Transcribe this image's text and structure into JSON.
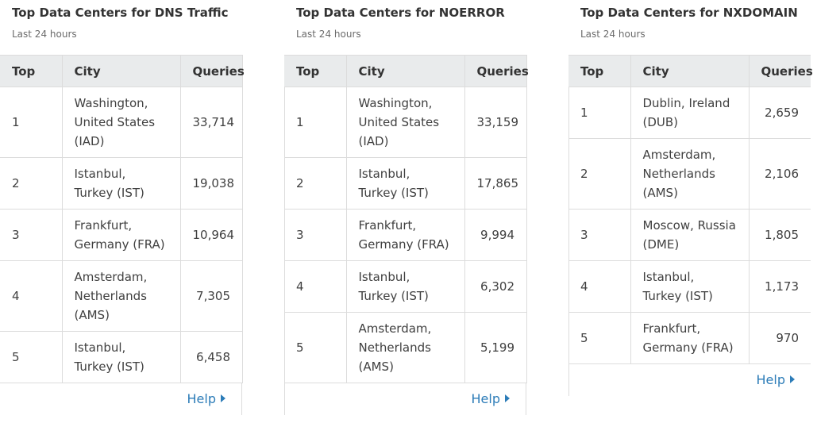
{
  "table_headers": {
    "top": "Top",
    "city": "City",
    "queries": "Queries"
  },
  "help_label": "Help",
  "panels": [
    {
      "title": "Top Data Centers for DNS Traffic",
      "subtitle": "Last 24 hours",
      "rows": [
        {
          "rank": "1",
          "city": "Washington, United States (IAD)",
          "queries": "33,714"
        },
        {
          "rank": "2",
          "city": "Istanbul, Turkey (IST)",
          "queries": "19,038"
        },
        {
          "rank": "3",
          "city": "Frankfurt, Germany (FRA)",
          "queries": "10,964"
        },
        {
          "rank": "4",
          "city": "Amsterdam, Netherlands (AMS)",
          "queries": "7,305"
        },
        {
          "rank": "5",
          "city": "Istanbul, Turkey (IST)",
          "queries": "6,458"
        }
      ]
    },
    {
      "title": "Top Data Centers for NOERROR",
      "subtitle": "Last 24 hours",
      "rows": [
        {
          "rank": "1",
          "city": "Washington, United States (IAD)",
          "queries": "33,159"
        },
        {
          "rank": "2",
          "city": "Istanbul, Turkey (IST)",
          "queries": "17,865"
        },
        {
          "rank": "3",
          "city": "Frankfurt, Germany (FRA)",
          "queries": "9,994"
        },
        {
          "rank": "4",
          "city": "Istanbul, Turkey (IST)",
          "queries": "6,302"
        },
        {
          "rank": "5",
          "city": "Amsterdam, Netherlands (AMS)",
          "queries": "5,199"
        }
      ]
    },
    {
      "title": "Top Data Centers for NXDOMAIN",
      "subtitle": "Last 24 hours",
      "rows": [
        {
          "rank": "1",
          "city": "Dublin, Ireland (DUB)",
          "queries": "2,659"
        },
        {
          "rank": "2",
          "city": "Amsterdam, Netherlands (AMS)",
          "queries": "2,106"
        },
        {
          "rank": "3",
          "city": "Moscow, Russia (DME)",
          "queries": "1,805"
        },
        {
          "rank": "4",
          "city": "Istanbul, Turkey (IST)",
          "queries": "1,173"
        },
        {
          "rank": "5",
          "city": "Frankfurt, Germany (FRA)",
          "queries": "970"
        }
      ]
    }
  ],
  "colors": {
    "link": "#2c7cb8",
    "header_bg": "#e9ebec",
    "border": "#dcdcdc"
  }
}
